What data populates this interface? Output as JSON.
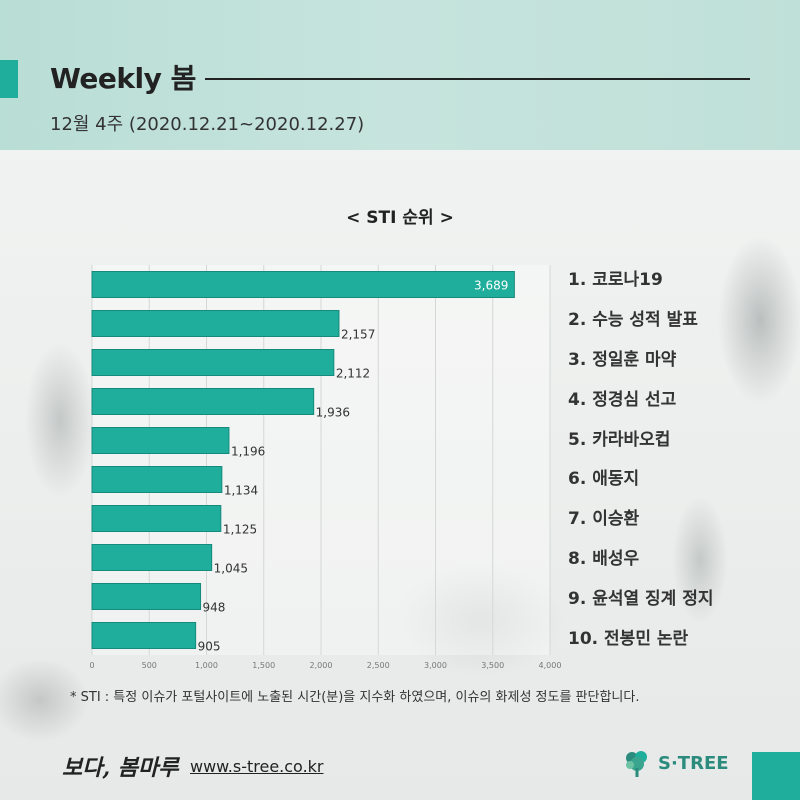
{
  "header": {
    "title": "Weekly 봄",
    "subtitle": "12월 4주 (2020.12.21~2020.12.27)"
  },
  "chart_data": {
    "type": "bar",
    "orientation": "horizontal",
    "title": "< STI 순위 >",
    "categories": [
      "1. 코로나19",
      "2. 수능 성적 발표",
      "3. 정일훈 마약",
      "4. 정경심 선고",
      "5. 카라바오컵",
      "6. 애동지",
      "7. 이승환",
      "8. 배성우",
      "9. 윤석열 징계 정지",
      "10. 전봉민 논란"
    ],
    "values": [
      3689,
      2157,
      2112,
      1936,
      1196,
      1134,
      1125,
      1045,
      948,
      905
    ],
    "value_labels": [
      "3,689",
      "2,157",
      "2,112",
      "1,936",
      "1,196",
      "1,134",
      "1,125",
      "1,045",
      "948",
      "905"
    ],
    "xlim": [
      0,
      4000
    ],
    "xticks": [
      0,
      500,
      1000,
      1500,
      2000,
      2500,
      3000,
      3500,
      4000
    ],
    "xtick_labels": [
      "0",
      "500",
      "1,000",
      "1,500",
      "2,000",
      "2,500",
      "3,000",
      "3,500",
      "4,000"
    ],
    "grid": "vertical",
    "bar_color": "#1fae9c",
    "xlabel": "",
    "ylabel": ""
  },
  "footnote": "* STI : 특정 이슈가 포털사이트에 노출된 시간(분)을 지수화 하였으며, 이슈의 화제성 정도를 판단합니다.",
  "footer": {
    "brand": "보다, 봄마루",
    "url": "www.s-tree.co.kr",
    "logo_text": "S·TREE",
    "logo_icon": "tree-icon"
  },
  "colors": {
    "accent": "#1fae9c",
    "header_band": "#bfe0d8"
  }
}
